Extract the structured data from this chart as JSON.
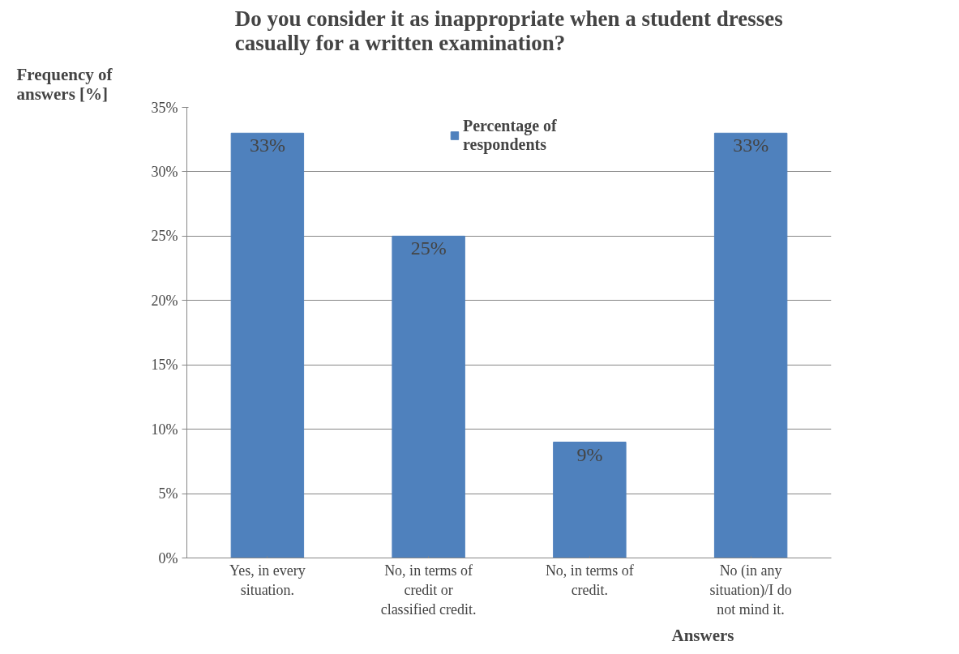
{
  "chart_data": {
    "type": "bar",
    "title": "Do you consider it as inappropriate when a student dresses casually for a written examination?",
    "xlabel": "Answers",
    "ylabel": "Frequency of answers [%]",
    "categories": [
      "Yes, in every situation.",
      "No, in terms of credit or classified credit.",
      "No, in terms of credit.",
      "No (in any situation)/I do not mind it."
    ],
    "series": [
      {
        "name": "Percentage of respondents",
        "color": "#4f81bd",
        "values": [
          33,
          25,
          9,
          33
        ],
        "value_labels": [
          "33%",
          "25%",
          "9%",
          "33%"
        ]
      }
    ],
    "ylim": [
      0,
      35
    ],
    "yticks": [
      {
        "value": 0,
        "label": "0%"
      },
      {
        "value": 5,
        "label": "5%"
      },
      {
        "value": 10,
        "label": "10%"
      },
      {
        "value": 15,
        "label": "15%"
      },
      {
        "value": 20,
        "label": "20%"
      },
      {
        "value": 25,
        "label": "25%"
      },
      {
        "value": 30,
        "label": "30%"
      },
      {
        "value": 35,
        "label": "35%"
      }
    ],
    "grid": "y",
    "legend": "top"
  }
}
